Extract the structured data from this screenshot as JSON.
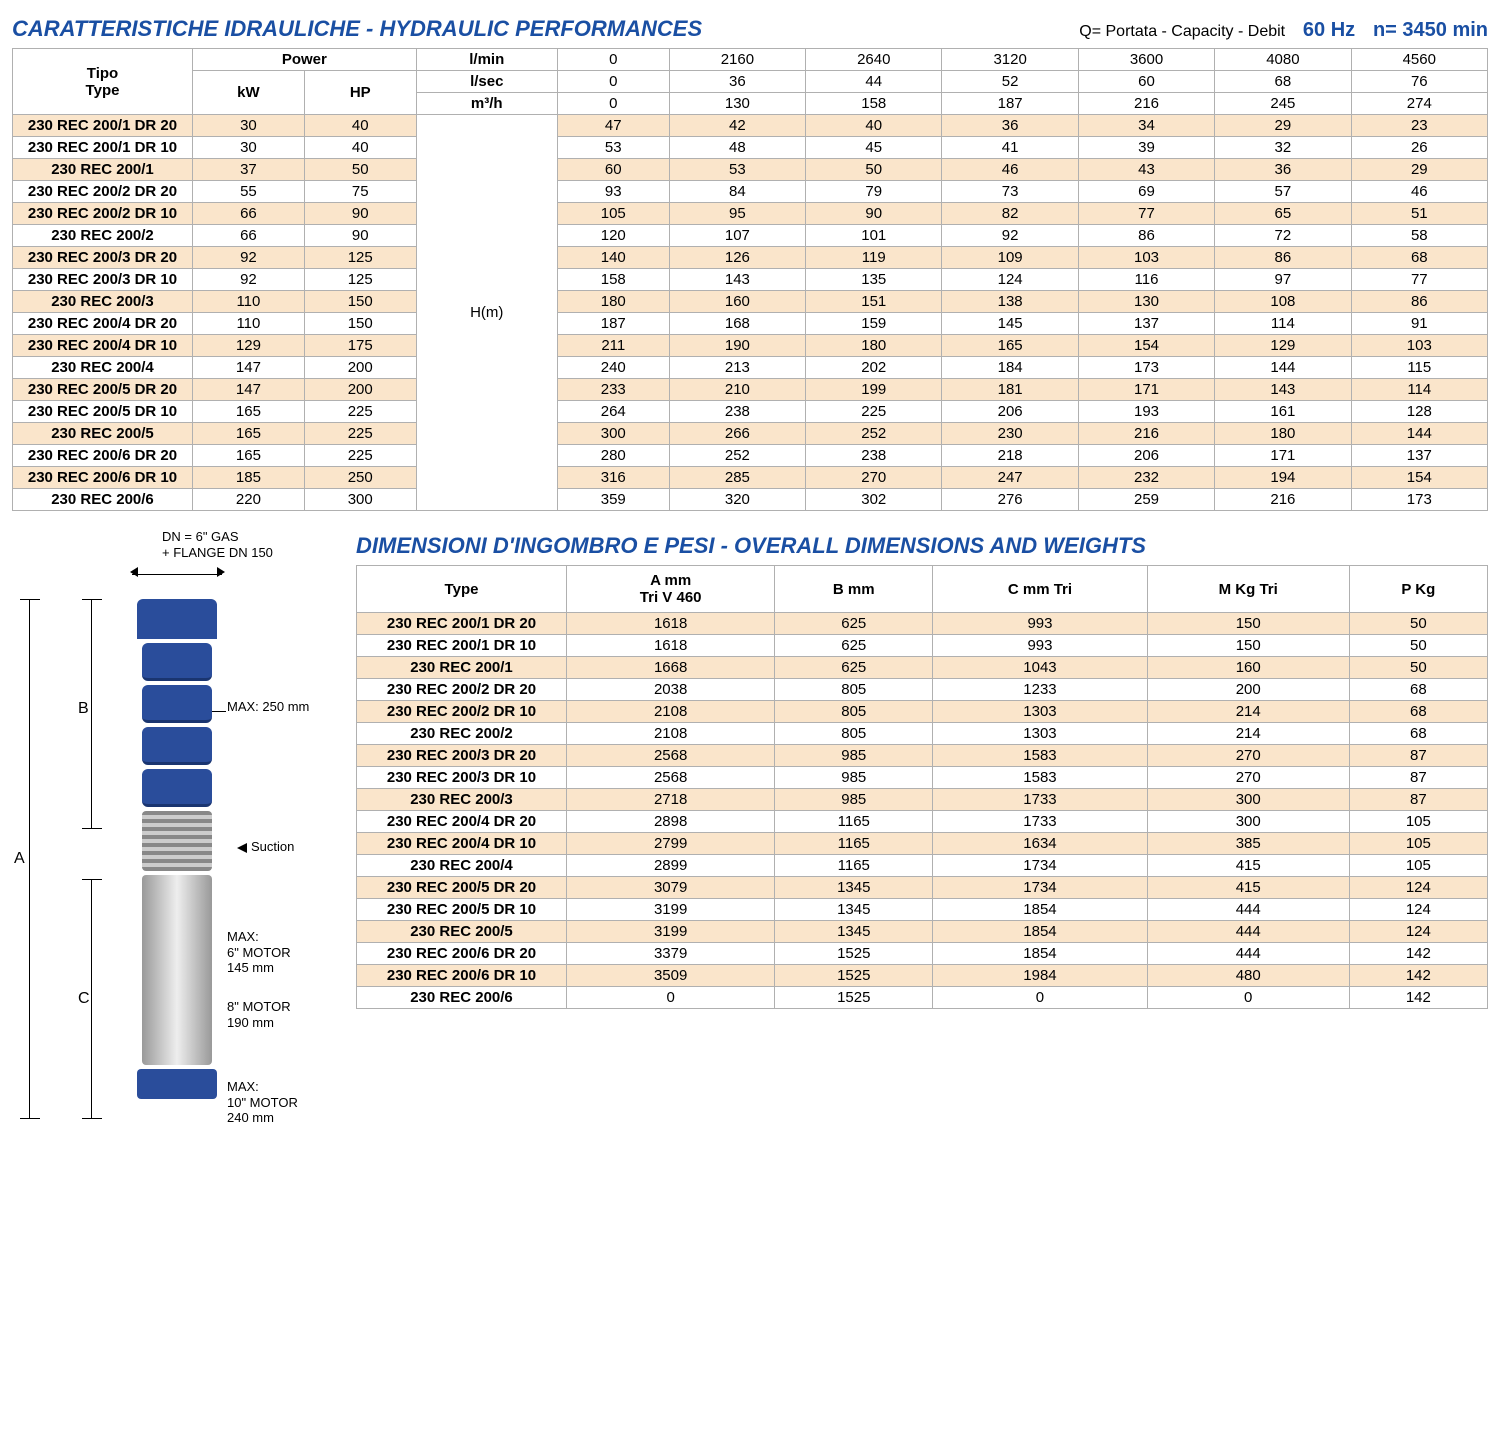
{
  "titles": {
    "hydraulic": "CARATTERISTICHE IDRAULICHE - HYDRAULIC PERFORMANCES",
    "capacity_note": "Q= Portata - Capacity - Debit",
    "hz": "60 Hz",
    "rpm": "n= 3450 min",
    "dims": "DIMENSIONI D'INGOMBRO E PESI - OVERALL DIMENSIONS AND WEIGHTS"
  },
  "hydraulic": {
    "head_tipo": "Tipo\nType",
    "head_power": "Power",
    "head_kw": "kW",
    "head_hp": "HP",
    "units": [
      "l/min",
      "l/sec",
      "m³/h"
    ],
    "unit_rows": [
      [
        "0",
        "2160",
        "2640",
        "3120",
        "3600",
        "4080",
        "4560"
      ],
      [
        "0",
        "36",
        "44",
        "52",
        "60",
        "68",
        "76"
      ],
      [
        "0",
        "130",
        "158",
        "187",
        "216",
        "245",
        "274"
      ]
    ],
    "hm_label": "H(m)",
    "rows": [
      {
        "model": "230 REC 200/1 DR 20",
        "kw": "30",
        "hp": "40",
        "vals": [
          "47",
          "42",
          "40",
          "36",
          "34",
          "29",
          "23"
        ],
        "stripe": true
      },
      {
        "model": "230 REC 200/1 DR 10",
        "kw": "30",
        "hp": "40",
        "vals": [
          "53",
          "48",
          "45",
          "41",
          "39",
          "32",
          "26"
        ],
        "stripe": false
      },
      {
        "model": "230 REC 200/1",
        "kw": "37",
        "hp": "50",
        "vals": [
          "60",
          "53",
          "50",
          "46",
          "43",
          "36",
          "29"
        ],
        "stripe": true
      },
      {
        "model": "230 REC 200/2 DR 20",
        "kw": "55",
        "hp": "75",
        "vals": [
          "93",
          "84",
          "79",
          "73",
          "69",
          "57",
          "46"
        ],
        "stripe": false
      },
      {
        "model": "230 REC 200/2 DR 10",
        "kw": "66",
        "hp": "90",
        "vals": [
          "105",
          "95",
          "90",
          "82",
          "77",
          "65",
          "51"
        ],
        "stripe": true
      },
      {
        "model": "230 REC 200/2",
        "kw": "66",
        "hp": "90",
        "vals": [
          "120",
          "107",
          "101",
          "92",
          "86",
          "72",
          "58"
        ],
        "stripe": false
      },
      {
        "model": "230 REC 200/3 DR 20",
        "kw": "92",
        "hp": "125",
        "vals": [
          "140",
          "126",
          "119",
          "109",
          "103",
          "86",
          "68"
        ],
        "stripe": true
      },
      {
        "model": "230 REC 200/3 DR 10",
        "kw": "92",
        "hp": "125",
        "vals": [
          "158",
          "143",
          "135",
          "124",
          "116",
          "97",
          "77"
        ],
        "stripe": false
      },
      {
        "model": "230 REC 200/3",
        "kw": "110",
        "hp": "150",
        "vals": [
          "180",
          "160",
          "151",
          "138",
          "130",
          "108",
          "86"
        ],
        "stripe": true
      },
      {
        "model": "230 REC 200/4 DR 20",
        "kw": "110",
        "hp": "150",
        "vals": [
          "187",
          "168",
          "159",
          "145",
          "137",
          "114",
          "91"
        ],
        "stripe": false
      },
      {
        "model": "230 REC 200/4 DR 10",
        "kw": "129",
        "hp": "175",
        "vals": [
          "211",
          "190",
          "180",
          "165",
          "154",
          "129",
          "103"
        ],
        "stripe": true
      },
      {
        "model": "230 REC 200/4",
        "kw": "147",
        "hp": "200",
        "vals": [
          "240",
          "213",
          "202",
          "184",
          "173",
          "144",
          "115"
        ],
        "stripe": false
      },
      {
        "model": "230 REC 200/5 DR 20",
        "kw": "147",
        "hp": "200",
        "vals": [
          "233",
          "210",
          "199",
          "181",
          "171",
          "143",
          "114"
        ],
        "stripe": true
      },
      {
        "model": "230 REC 200/5 DR 10",
        "kw": "165",
        "hp": "225",
        "vals": [
          "264",
          "238",
          "225",
          "206",
          "193",
          "161",
          "128"
        ],
        "stripe": false
      },
      {
        "model": "230 REC 200/5",
        "kw": "165",
        "hp": "225",
        "vals": [
          "300",
          "266",
          "252",
          "230",
          "216",
          "180",
          "144"
        ],
        "stripe": true
      },
      {
        "model": "230 REC 200/6 DR 20",
        "kw": "165",
        "hp": "225",
        "vals": [
          "280",
          "252",
          "238",
          "218",
          "206",
          "171",
          "137"
        ],
        "stripe": false
      },
      {
        "model": "230 REC 200/6 DR 10",
        "kw": "185",
        "hp": "250",
        "vals": [
          "316",
          "285",
          "270",
          "247",
          "232",
          "194",
          "154"
        ],
        "stripe": true
      },
      {
        "model": "230 REC 200/6",
        "kw": "220",
        "hp": "300",
        "vals": [
          "359",
          "320",
          "302",
          "276",
          "259",
          "216",
          "173"
        ],
        "stripe": false
      }
    ]
  },
  "dimensions": {
    "headers": [
      "Type",
      "A mm\nTri V 460",
      "B mm",
      "C mm Tri",
      "M Kg Tri",
      "P Kg"
    ],
    "rows": [
      {
        "cells": [
          "230 REC 200/1 DR 20",
          "1618",
          "625",
          "993",
          "150",
          "50"
        ],
        "stripe": true
      },
      {
        "cells": [
          "230 REC 200/1 DR 10",
          "1618",
          "625",
          "993",
          "150",
          "50"
        ],
        "stripe": false
      },
      {
        "cells": [
          "230 REC 200/1",
          "1668",
          "625",
          "1043",
          "160",
          "50"
        ],
        "stripe": true
      },
      {
        "cells": [
          "230 REC 200/2 DR 20",
          "2038",
          "805",
          "1233",
          "200",
          "68"
        ],
        "stripe": false
      },
      {
        "cells": [
          "230 REC 200/2 DR 10",
          "2108",
          "805",
          "1303",
          "214",
          "68"
        ],
        "stripe": true
      },
      {
        "cells": [
          "230 REC 200/2",
          "2108",
          "805",
          "1303",
          "214",
          "68"
        ],
        "stripe": false
      },
      {
        "cells": [
          "230 REC 200/3 DR 20",
          "2568",
          "985",
          "1583",
          "270",
          "87"
        ],
        "stripe": true
      },
      {
        "cells": [
          "230 REC 200/3 DR 10",
          "2568",
          "985",
          "1583",
          "270",
          "87"
        ],
        "stripe": false
      },
      {
        "cells": [
          "230 REC 200/3",
          "2718",
          "985",
          "1733",
          "300",
          "87"
        ],
        "stripe": true
      },
      {
        "cells": [
          "230 REC 200/4 DR 20",
          "2898",
          "1165",
          "1733",
          "300",
          "105"
        ],
        "stripe": false
      },
      {
        "cells": [
          "230 REC 200/4 DR 10",
          "2799",
          "1165",
          "1634",
          "385",
          "105"
        ],
        "stripe": true
      },
      {
        "cells": [
          "230 REC 200/4",
          "2899",
          "1165",
          "1734",
          "415",
          "105"
        ],
        "stripe": false
      },
      {
        "cells": [
          "230 REC 200/5 DR 20",
          "3079",
          "1345",
          "1734",
          "415",
          "124"
        ],
        "stripe": true
      },
      {
        "cells": [
          "230 REC 200/5 DR 10",
          "3199",
          "1345",
          "1854",
          "444",
          "124"
        ],
        "stripe": false
      },
      {
        "cells": [
          "230 REC 200/5",
          "3199",
          "1345",
          "1854",
          "444",
          "124"
        ],
        "stripe": true
      },
      {
        "cells": [
          "230 REC 200/6 DR 20",
          "3379",
          "1525",
          "1854",
          "444",
          "142"
        ],
        "stripe": false
      },
      {
        "cells": [
          "230 REC 200/6 DR 10",
          "3509",
          "1525",
          "1984",
          "480",
          "142"
        ],
        "stripe": true
      },
      {
        "cells": [
          "230 REC 200/6",
          "0",
          "1525",
          "0",
          "0",
          "142"
        ],
        "stripe": false
      }
    ]
  },
  "diagram": {
    "dn_note": "DN = 6\" GAS\n+ FLANGE DN 150",
    "max250": "MAX: 250 mm",
    "suction": "Suction",
    "motor6": "MAX:\n6\" MOTOR\n145 mm",
    "motor8": "8\" MOTOR\n190 mm",
    "motor10": "MAX:\n10\" MOTOR\n240 mm",
    "A": "A",
    "B": "B",
    "C": "C"
  }
}
